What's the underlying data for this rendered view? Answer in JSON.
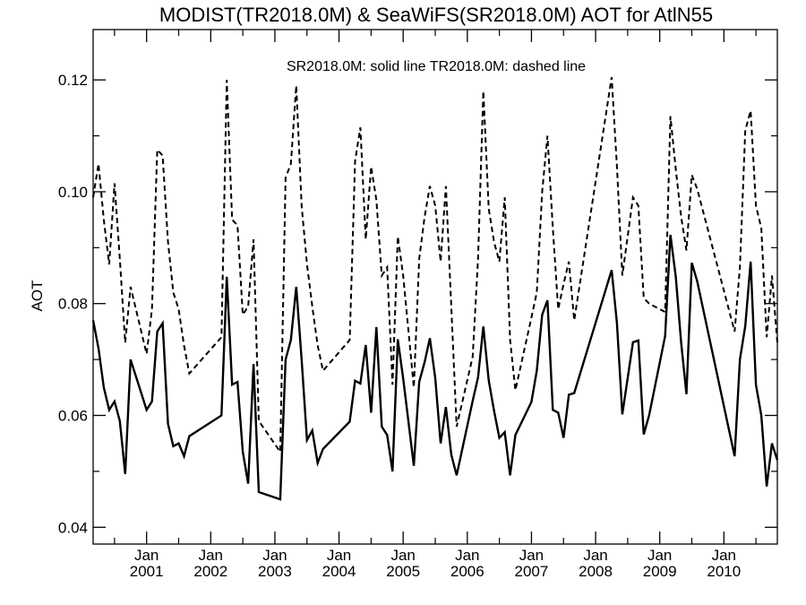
{
  "chart_data": {
    "type": "line",
    "title": "MODIST(TR2018.0M) & SeaWiFS(SR2018.0M)  AOT for AtlN55",
    "ylabel": "AOT",
    "xlabel": "",
    "legend_note": "SR2018.0M: solid line   TR2018.0M: dashed line",
    "xlim": [
      "2000-03",
      "2010-11"
    ],
    "ylim": [
      0.037,
      0.129
    ],
    "yticks": [
      0.04,
      0.06,
      0.08,
      0.1,
      0.12
    ],
    "ytick_labels": [
      "0.04",
      "0.06",
      "0.08",
      "0.10",
      "0.12"
    ],
    "xticks": [
      {
        "month": "Jan",
        "year": "2001",
        "date": "2001-01"
      },
      {
        "month": "Jan",
        "year": "2002",
        "date": "2002-01"
      },
      {
        "month": "Jan",
        "year": "2003",
        "date": "2003-01"
      },
      {
        "month": "Jan",
        "year": "2004",
        "date": "2004-01"
      },
      {
        "month": "Jan",
        "year": "2005",
        "date": "2005-01"
      },
      {
        "month": "Jan",
        "year": "2006",
        "date": "2006-01"
      },
      {
        "month": "Jan",
        "year": "2007",
        "date": "2007-01"
      },
      {
        "month": "Jan",
        "year": "2008",
        "date": "2008-01"
      },
      {
        "month": "Jan",
        "year": "2009",
        "date": "2009-01"
      },
      {
        "month": "Jan",
        "year": "2010",
        "date": "2010-01"
      }
    ],
    "series": [
      {
        "name": "SR2018.0M",
        "style": "solid",
        "color": "#000000",
        "points": [
          [
            "2000-03",
            0.077
          ],
          [
            "2000-04",
            0.072
          ],
          [
            "2000-05",
            0.065
          ],
          [
            "2000-06",
            0.061
          ],
          [
            "2000-07",
            0.0625
          ],
          [
            "2000-08",
            0.059
          ],
          [
            "2000-09",
            0.0495
          ],
          [
            "2000-10",
            0.07
          ],
          [
            "2001-01",
            0.061
          ],
          [
            "2001-02",
            0.0625
          ],
          [
            "2001-03",
            0.075
          ],
          [
            "2001-04",
            0.0765
          ],
          [
            "2001-05",
            0.0585
          ],
          [
            "2001-06",
            0.0545
          ],
          [
            "2001-07",
            0.055
          ],
          [
            "2001-08",
            0.0527
          ],
          [
            "2001-09",
            0.0563
          ],
          [
            "2002-03",
            0.06
          ],
          [
            "2002-04",
            0.0848
          ],
          [
            "2002-05",
            0.0655
          ],
          [
            "2002-06",
            0.066
          ],
          [
            "2002-07",
            0.0535
          ],
          [
            "2002-08",
            0.0478
          ],
          [
            "2002-09",
            0.0692
          ],
          [
            "2002-10",
            0.0463
          ],
          [
            "2003-02",
            0.045
          ],
          [
            "2003-03",
            0.07
          ],
          [
            "2003-04",
            0.0735
          ],
          [
            "2003-05",
            0.083
          ],
          [
            "2003-06",
            0.07
          ],
          [
            "2003-07",
            0.0556
          ],
          [
            "2003-08",
            0.0573
          ],
          [
            "2003-09",
            0.0515
          ],
          [
            "2003-10",
            0.054
          ],
          [
            "2004-03",
            0.0589
          ],
          [
            "2004-04",
            0.0662
          ],
          [
            "2004-05",
            0.0657
          ],
          [
            "2004-06",
            0.0726
          ],
          [
            "2004-07",
            0.0605
          ],
          [
            "2004-08",
            0.0758
          ],
          [
            "2004-09",
            0.058
          ],
          [
            "2004-10",
            0.0565
          ],
          [
            "2004-11",
            0.05
          ],
          [
            "2004-12",
            0.0736
          ],
          [
            "2005-01",
            0.0666
          ],
          [
            "2005-03",
            0.051
          ],
          [
            "2005-04",
            0.066
          ],
          [
            "2005-05",
            0.0695
          ],
          [
            "2005-06",
            0.0738
          ],
          [
            "2005-07",
            0.0667
          ],
          [
            "2005-08",
            0.055
          ],
          [
            "2005-09",
            0.0615
          ],
          [
            "2005-10",
            0.053
          ],
          [
            "2005-11",
            0.0493
          ],
          [
            "2006-02",
            0.0626
          ],
          [
            "2006-03",
            0.0668
          ],
          [
            "2006-04",
            0.0759
          ],
          [
            "2006-05",
            0.0663
          ],
          [
            "2006-06",
            0.0608
          ],
          [
            "2006-07",
            0.056
          ],
          [
            "2006-08",
            0.057
          ],
          [
            "2006-09",
            0.0493
          ],
          [
            "2006-10",
            0.0565
          ],
          [
            "2007-01",
            0.0624
          ],
          [
            "2007-02",
            0.068
          ],
          [
            "2007-03",
            0.078
          ],
          [
            "2007-04",
            0.0806
          ],
          [
            "2007-05",
            0.061
          ],
          [
            "2007-06",
            0.0605
          ],
          [
            "2007-07",
            0.056
          ],
          [
            "2007-08",
            0.0637
          ],
          [
            "2007-09",
            0.064
          ],
          [
            "2008-04",
            0.086
          ],
          [
            "2008-05",
            0.0765
          ],
          [
            "2008-06",
            0.0602
          ],
          [
            "2008-08",
            0.0731
          ],
          [
            "2008-09",
            0.0734
          ],
          [
            "2008-10",
            0.0566
          ],
          [
            "2008-11",
            0.06
          ],
          [
            "2009-02",
            0.0742
          ],
          [
            "2009-03",
            0.0923
          ],
          [
            "2009-04",
            0.0848
          ],
          [
            "2009-05",
            0.073
          ],
          [
            "2009-06",
            0.0638
          ],
          [
            "2009-07",
            0.0873
          ],
          [
            "2009-08",
            0.084
          ],
          [
            "2010-03",
            0.0527
          ],
          [
            "2010-04",
            0.07
          ],
          [
            "2010-05",
            0.076
          ],
          [
            "2010-06",
            0.0875
          ],
          [
            "2010-07",
            0.0655
          ],
          [
            "2010-08",
            0.06
          ],
          [
            "2010-09",
            0.0473
          ],
          [
            "2010-10",
            0.055
          ],
          [
            "2010-11",
            0.052
          ]
        ]
      },
      {
        "name": "TR2018.0M",
        "style": "dashed",
        "color": "#000000",
        "points": [
          [
            "2000-03",
            0.099
          ],
          [
            "2000-04",
            0.105
          ],
          [
            "2000-05",
            0.095
          ],
          [
            "2000-06",
            0.087
          ],
          [
            "2000-07",
            0.1015
          ],
          [
            "2000-08",
            0.088
          ],
          [
            "2000-09",
            0.073
          ],
          [
            "2000-10",
            0.083
          ],
          [
            "2001-01",
            0.071
          ],
          [
            "2001-02",
            0.079
          ],
          [
            "2001-03",
            0.1075
          ],
          [
            "2001-04",
            0.1065
          ],
          [
            "2001-05",
            0.091
          ],
          [
            "2001-06",
            0.082
          ],
          [
            "2001-07",
            0.079
          ],
          [
            "2001-08",
            0.0725
          ],
          [
            "2001-09",
            0.0675
          ],
          [
            "2002-03",
            0.074
          ],
          [
            "2002-04",
            0.12
          ],
          [
            "2002-05",
            0.095
          ],
          [
            "2002-06",
            0.094
          ],
          [
            "2002-07",
            0.078
          ],
          [
            "2002-08",
            0.0795
          ],
          [
            "2002-09",
            0.0915
          ],
          [
            "2002-10",
            0.059
          ],
          [
            "2003-02",
            0.0535
          ],
          [
            "2003-03",
            0.1025
          ],
          [
            "2003-04",
            0.105
          ],
          [
            "2003-05",
            0.119
          ],
          [
            "2003-06",
            0.0975
          ],
          [
            "2003-07",
            0.087
          ],
          [
            "2003-08",
            0.0795
          ],
          [
            "2003-09",
            0.0725
          ],
          [
            "2003-10",
            0.068
          ],
          [
            "2004-03",
            0.0735
          ],
          [
            "2004-04",
            0.1055
          ],
          [
            "2004-05",
            0.1115
          ],
          [
            "2004-06",
            0.0915
          ],
          [
            "2004-07",
            0.1045
          ],
          [
            "2004-08",
            0.0985
          ],
          [
            "2004-09",
            0.085
          ],
          [
            "2004-10",
            0.0865
          ],
          [
            "2004-11",
            0.0655
          ],
          [
            "2004-12",
            0.092
          ],
          [
            "2005-01",
            0.085
          ],
          [
            "2005-03",
            0.065
          ],
          [
            "2005-04",
            0.088
          ],
          [
            "2005-05",
            0.0955
          ],
          [
            "2005-06",
            0.101
          ],
          [
            "2005-07",
            0.0975
          ],
          [
            "2005-08",
            0.0875
          ],
          [
            "2005-09",
            0.101
          ],
          [
            "2005-10",
            0.0795
          ],
          [
            "2005-11",
            0.058
          ],
          [
            "2006-02",
            0.0705
          ],
          [
            "2006-03",
            0.088
          ],
          [
            "2006-04",
            0.118
          ],
          [
            "2006-05",
            0.097
          ],
          [
            "2006-06",
            0.091
          ],
          [
            "2006-07",
            0.0875
          ],
          [
            "2006-08",
            0.099
          ],
          [
            "2006-09",
            0.0735
          ],
          [
            "2006-10",
            0.0645
          ],
          [
            "2007-01",
            0.0775
          ],
          [
            "2007-02",
            0.082
          ],
          [
            "2007-03",
            0.1
          ],
          [
            "2007-04",
            0.11
          ],
          [
            "2007-05",
            0.0935
          ],
          [
            "2007-06",
            0.079
          ],
          [
            "2007-07",
            0.0835
          ],
          [
            "2007-08",
            0.0875
          ],
          [
            "2007-09",
            0.077
          ],
          [
            "2008-04",
            0.1205
          ],
          [
            "2008-05",
            0.1045
          ],
          [
            "2008-06",
            0.085
          ],
          [
            "2008-08",
            0.099
          ],
          [
            "2008-09",
            0.0975
          ],
          [
            "2008-10",
            0.081
          ],
          [
            "2008-11",
            0.08
          ],
          [
            "2009-02",
            0.0785
          ],
          [
            "2009-03",
            0.1135
          ],
          [
            "2009-04",
            0.104
          ],
          [
            "2009-05",
            0.0955
          ],
          [
            "2009-06",
            0.0895
          ],
          [
            "2009-07",
            0.103
          ],
          [
            "2009-08",
            0.1005
          ],
          [
            "2010-03",
            0.075
          ],
          [
            "2010-04",
            0.0865
          ],
          [
            "2010-05",
            0.111
          ],
          [
            "2010-06",
            0.1145
          ],
          [
            "2010-07",
            0.0975
          ],
          [
            "2010-08",
            0.0935
          ],
          [
            "2010-09",
            0.074
          ],
          [
            "2010-10",
            0.085
          ],
          [
            "2010-11",
            0.073
          ]
        ]
      }
    ]
  }
}
